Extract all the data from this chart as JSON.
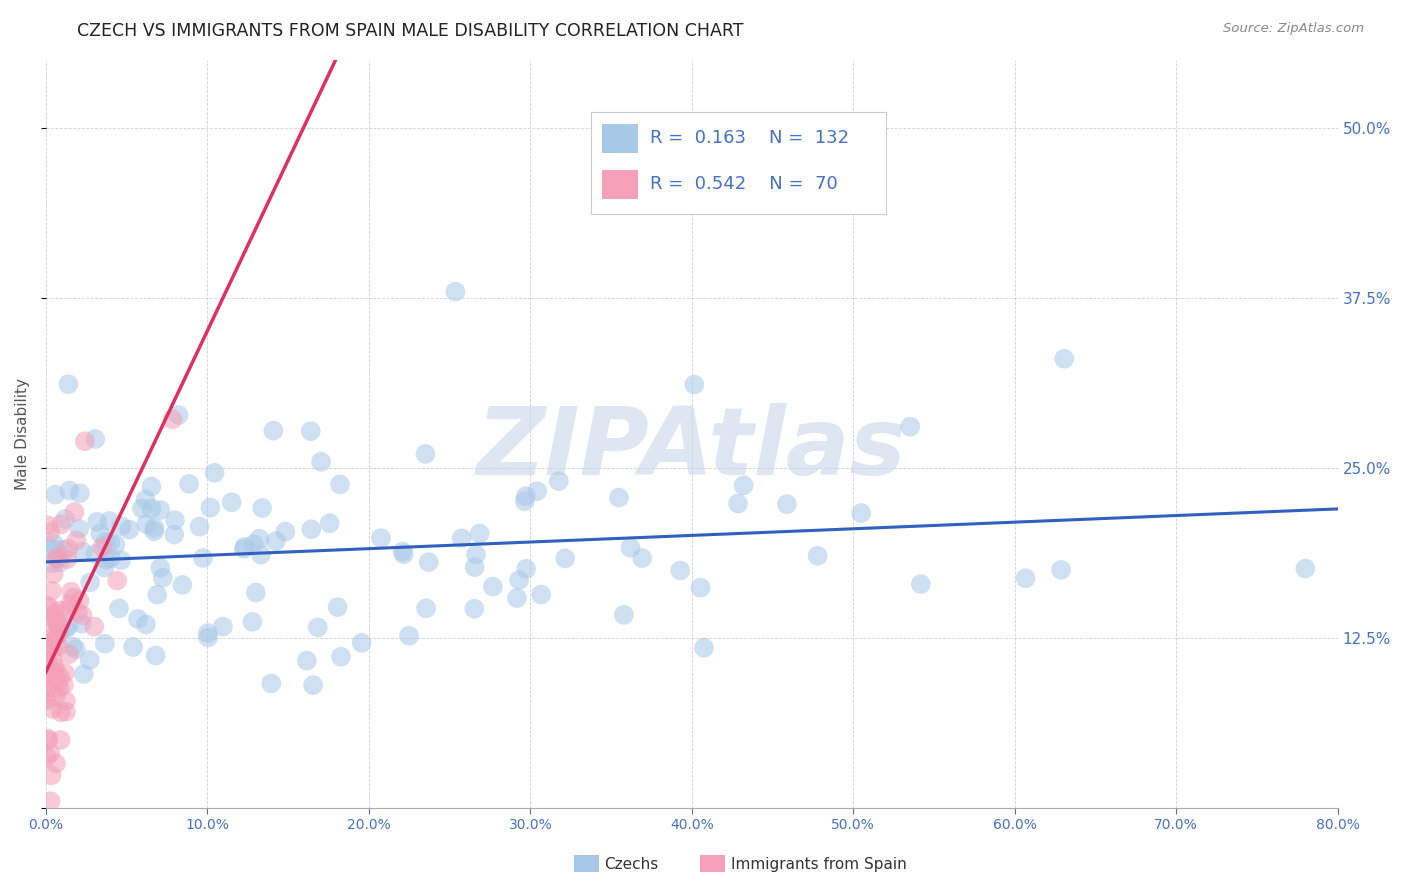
{
  "title": "CZECH VS IMMIGRANTS FROM SPAIN MALE DISABILITY CORRELATION CHART",
  "source": "Source: ZipAtlas.com",
  "ylabel": "Male Disability",
  "watermark": "ZIPAtlas",
  "xlim": [
    0.0,
    80.0
  ],
  "ylim": [
    0.0,
    55.0
  ],
  "yticks": [
    12.5,
    25.0,
    37.5,
    50.0
  ],
  "xticks": [
    0.0,
    10.0,
    20.0,
    30.0,
    40.0,
    50.0,
    60.0,
    70.0,
    80.0
  ],
  "czech_R": 0.163,
  "czech_N": 132,
  "spain_R": 0.542,
  "spain_N": 70,
  "czech_color": "#a8c8e8",
  "spain_color": "#f4a0b8",
  "czech_line_color": "#3060c0",
  "spain_line_color": "#e03060",
  "background_color": "#ffffff",
  "grid_color": "#bbbbbb",
  "tick_color": "#4472c4",
  "title_color": "#222222",
  "watermark_color": "#c8d8e8",
  "source_color": "#888888"
}
